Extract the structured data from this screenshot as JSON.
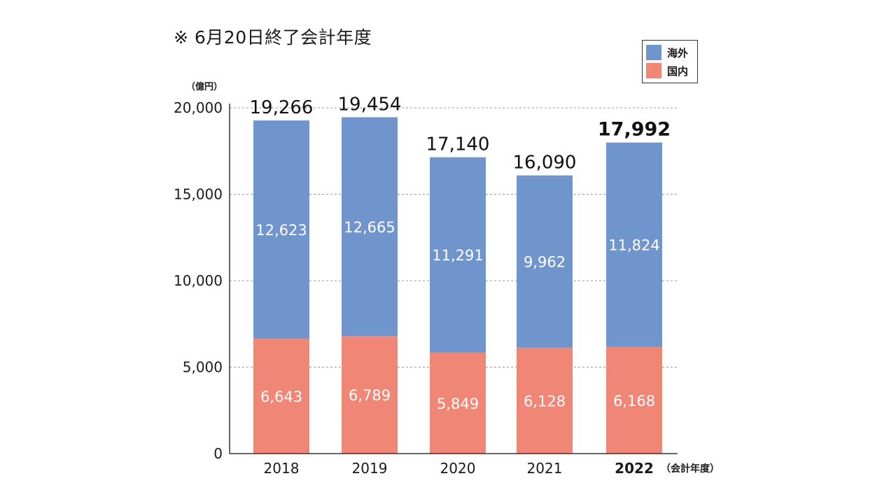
{
  "header": {
    "note": "※ 6月20日終了会計年度",
    "unit": "（億円）"
  },
  "legend": {
    "items": [
      {
        "label": "海外",
        "color": "#7095cd"
      },
      {
        "label": "国内",
        "color": "#ef8676"
      }
    ]
  },
  "chart_data": {
    "type": "bar",
    "stacked": true,
    "categories": [
      "2018",
      "2019",
      "2020",
      "2021",
      "2022"
    ],
    "xlabel_suffix": "（会計年度）",
    "highlight_category": "2022",
    "series": [
      {
        "name": "国内",
        "color": "#ef8676",
        "values": [
          6643,
          6789,
          5849,
          6128,
          6168
        ]
      },
      {
        "name": "海外",
        "color": "#7095cd",
        "values": [
          12623,
          12665,
          11291,
          9962,
          11824
        ]
      }
    ],
    "value_labels": [
      "6,643",
      "6,789",
      "5,849",
      "6,128",
      "6,168"
    ],
    "value_labels_overseas": [
      "12,623",
      "12,665",
      "11,291",
      "9,962",
      "11,824"
    ],
    "totals": [
      19266,
      19454,
      17140,
      16090,
      17992
    ],
    "total_labels": [
      "19,266",
      "19,454",
      "17,140",
      "16,090",
      "17,992"
    ],
    "ylim": [
      0,
      20000
    ],
    "yticks": [
      0,
      5000,
      10000,
      15000,
      20000
    ],
    "ytick_labels": [
      "0",
      "5,000",
      "10,000",
      "15,000",
      "20,000"
    ],
    "grid": true
  }
}
